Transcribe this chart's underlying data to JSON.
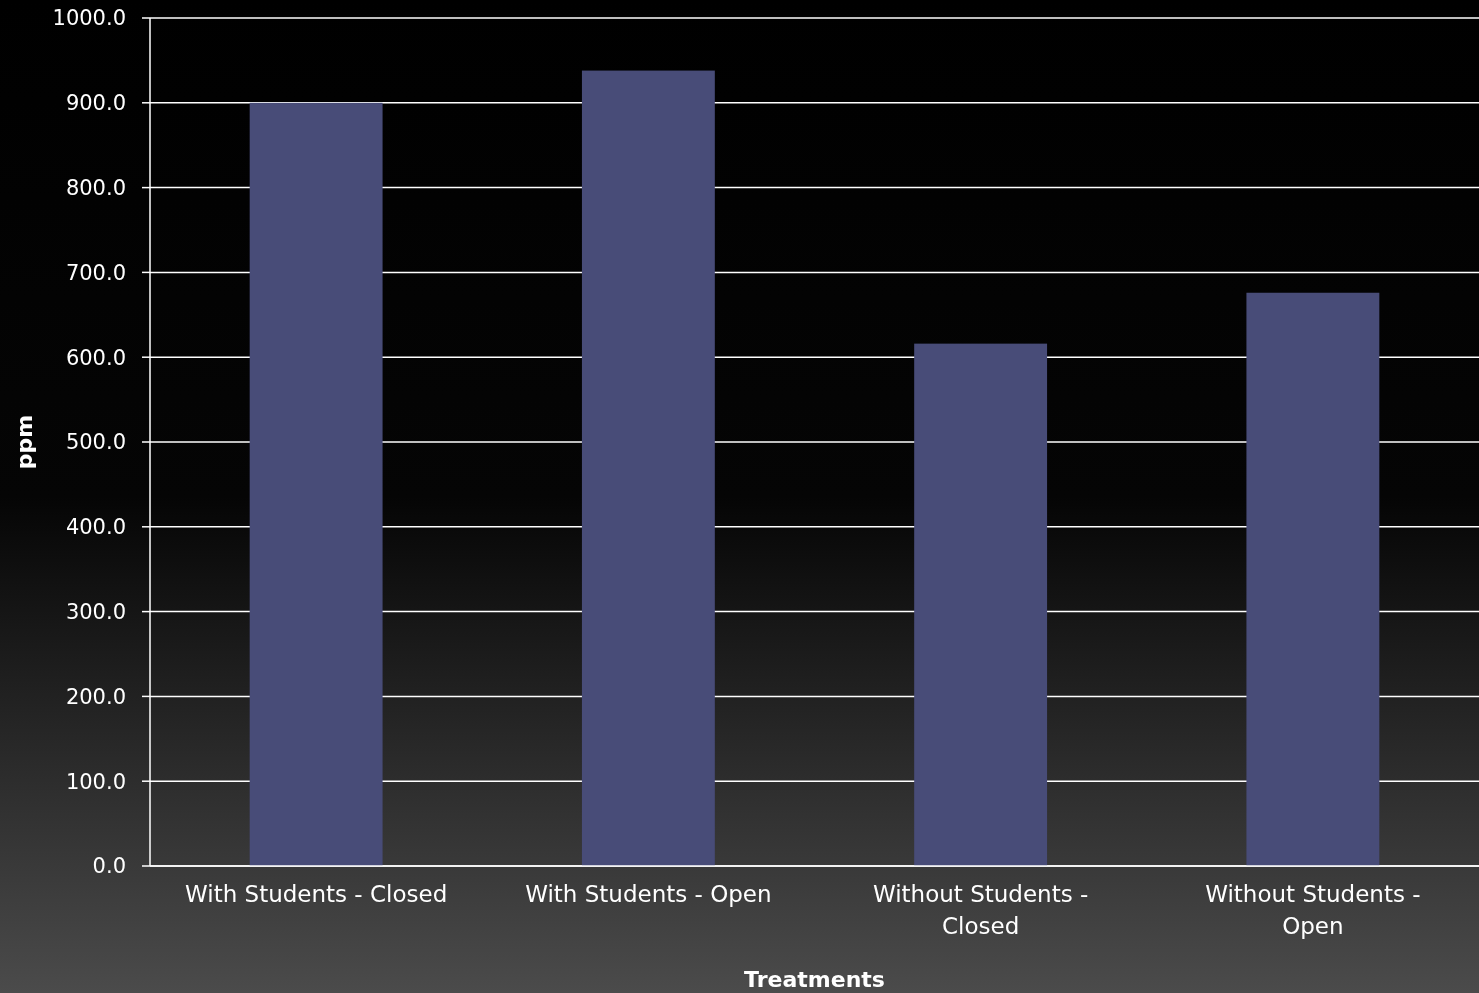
{
  "chart_data": {
    "type": "bar",
    "xlabel": "Treatments",
    "ylabel": "ppm",
    "categories": [
      "With Students - Closed",
      "With Students - Open",
      "Without Students - Closed",
      "Without Students - Open"
    ],
    "values": [
      900,
      938,
      616,
      676
    ],
    "color": "#484c78",
    "ylim": [
      0,
      1000
    ],
    "yticks": [
      {
        "value": 0,
        "label": "0.0"
      },
      {
        "value": 100,
        "label": "100.0"
      },
      {
        "value": 200,
        "label": "200.0"
      },
      {
        "value": 300,
        "label": "300.0"
      },
      {
        "value": 400,
        "label": "400.0"
      },
      {
        "value": 500,
        "label": "500.0"
      },
      {
        "value": 600,
        "label": "600.0"
      },
      {
        "value": 700,
        "label": "700.0"
      },
      {
        "value": 800,
        "label": "800.0"
      },
      {
        "value": 900,
        "label": "900.0"
      },
      {
        "value": 1000,
        "label": "1000.0"
      }
    ],
    "grid": "y"
  }
}
